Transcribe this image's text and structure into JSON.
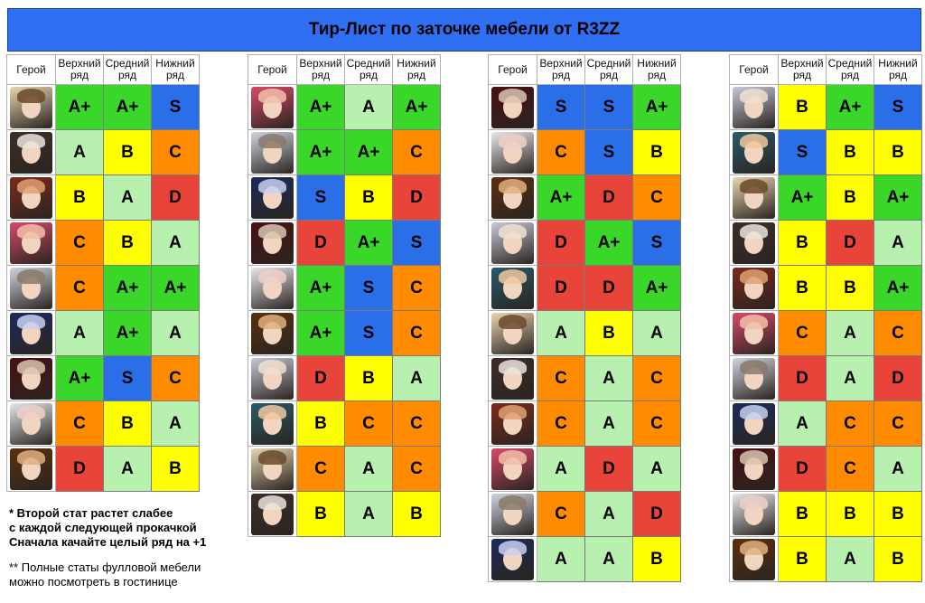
{
  "title": "Тир-Лист по заточке мебели от R3ZZ",
  "headers": [
    "Герой",
    "Верхний ряд",
    "Средний ряд",
    "Нижний ряд"
  ],
  "grade_colors": {
    "S": "#2a6fe8",
    "A+": "#3ad72a",
    "A": "#b8f0b0",
    "B": "#ffff00",
    "C": "#ff8c00",
    "D": "#e8443a"
  },
  "tables": [
    {
      "rows": [
        {
          "hero_icon": "hero-portrait-icon",
          "grades": [
            "A+",
            "A+",
            "S"
          ]
        },
        {
          "hero_icon": "hero-portrait-icon",
          "grades": [
            "A",
            "B",
            "C"
          ]
        },
        {
          "hero_icon": "hero-portrait-icon",
          "grades": [
            "B",
            "A",
            "D"
          ]
        },
        {
          "hero_icon": "hero-portrait-icon",
          "grades": [
            "C",
            "B",
            "A"
          ]
        },
        {
          "hero_icon": "hero-portrait-icon",
          "grades": [
            "C",
            "A+",
            "A+"
          ]
        },
        {
          "hero_icon": "hero-portrait-icon",
          "grades": [
            "A",
            "A+",
            "A"
          ]
        },
        {
          "hero_icon": "hero-portrait-icon",
          "grades": [
            "A+",
            "S",
            "C"
          ]
        },
        {
          "hero_icon": "hero-portrait-icon",
          "grades": [
            "C",
            "B",
            "A"
          ]
        },
        {
          "hero_icon": "hero-portrait-icon",
          "grades": [
            "D",
            "A",
            "B"
          ]
        }
      ]
    },
    {
      "rows": [
        {
          "hero_icon": "hero-portrait-icon",
          "grades": [
            "A+",
            "A",
            "A+"
          ]
        },
        {
          "hero_icon": "hero-portrait-icon",
          "grades": [
            "A+",
            "A+",
            "C"
          ]
        },
        {
          "hero_icon": "hero-portrait-icon",
          "grades": [
            "S",
            "B",
            "D"
          ]
        },
        {
          "hero_icon": "hero-portrait-icon",
          "grades": [
            "D",
            "A+",
            "S"
          ]
        },
        {
          "hero_icon": "hero-portrait-icon",
          "grades": [
            "A+",
            "S",
            "C"
          ]
        },
        {
          "hero_icon": "hero-portrait-icon",
          "grades": [
            "A+",
            "S",
            "C"
          ]
        },
        {
          "hero_icon": "hero-portrait-icon",
          "grades": [
            "D",
            "B",
            "A"
          ]
        },
        {
          "hero_icon": "hero-portrait-icon",
          "grades": [
            "B",
            "C",
            "C"
          ]
        },
        {
          "hero_icon": "hero-portrait-icon",
          "grades": [
            "C",
            "A",
            "C"
          ]
        },
        {
          "hero_icon": "hero-portrait-icon",
          "grades": [
            "B",
            "A",
            "B"
          ]
        }
      ]
    },
    {
      "rows": [
        {
          "hero_icon": "hero-portrait-icon",
          "grades": [
            "S",
            "S",
            "A+"
          ]
        },
        {
          "hero_icon": "hero-portrait-icon",
          "grades": [
            "C",
            "S",
            "B"
          ]
        },
        {
          "hero_icon": "hero-portrait-icon",
          "grades": [
            "A+",
            "D",
            "C"
          ]
        },
        {
          "hero_icon": "hero-portrait-icon",
          "grades": [
            "D",
            "A+",
            "S"
          ]
        },
        {
          "hero_icon": "hero-portrait-icon",
          "grades": [
            "D",
            "D",
            "A+"
          ]
        },
        {
          "hero_icon": "hero-portrait-icon",
          "grades": [
            "A",
            "B",
            "A"
          ]
        },
        {
          "hero_icon": "hero-portrait-icon",
          "grades": [
            "C",
            "A",
            "C"
          ]
        },
        {
          "hero_icon": "hero-portrait-icon",
          "grades": [
            "C",
            "A",
            "C"
          ]
        },
        {
          "hero_icon": "hero-portrait-icon",
          "grades": [
            "A",
            "D",
            "A"
          ]
        },
        {
          "hero_icon": "hero-portrait-icon",
          "grades": [
            "C",
            "A",
            "D"
          ]
        },
        {
          "hero_icon": "hero-portrait-icon",
          "grades": [
            "A",
            "A",
            "B"
          ]
        }
      ]
    },
    {
      "rows": [
        {
          "hero_icon": "hero-portrait-icon",
          "grades": [
            "B",
            "A+",
            "S"
          ]
        },
        {
          "hero_icon": "hero-portrait-icon",
          "grades": [
            "S",
            "B",
            "B"
          ]
        },
        {
          "hero_icon": "hero-portrait-icon",
          "grades": [
            "A+",
            "B",
            "A+"
          ]
        },
        {
          "hero_icon": "hero-portrait-icon",
          "grades": [
            "B",
            "D",
            "A"
          ]
        },
        {
          "hero_icon": "hero-portrait-icon",
          "grades": [
            "B",
            "B",
            "A+"
          ]
        },
        {
          "hero_icon": "hero-portrait-icon",
          "grades": [
            "C",
            "A",
            "C"
          ]
        },
        {
          "hero_icon": "hero-portrait-icon",
          "grades": [
            "D",
            "A",
            "D"
          ]
        },
        {
          "hero_icon": "hero-portrait-icon",
          "grades": [
            "A",
            "C",
            "C"
          ]
        },
        {
          "hero_icon": "hero-portrait-icon",
          "grades": [
            "D",
            "C",
            "A"
          ]
        },
        {
          "hero_icon": "hero-portrait-icon",
          "grades": [
            "B",
            "B",
            "B"
          ]
        },
        {
          "hero_icon": "hero-portrait-icon",
          "grades": [
            "B",
            "A",
            "B"
          ]
        }
      ]
    }
  ],
  "notes": {
    "note1_line1": "* Второй стат растет слабее",
    "note1_line2": "с каждой следующей прокачкой",
    "note1_line3": "Сначала качайте целый ряд на +1",
    "note2_line1": "** Полные статы фулловой мебели",
    "note2_line2": "можно посмотреть в гостинице"
  }
}
